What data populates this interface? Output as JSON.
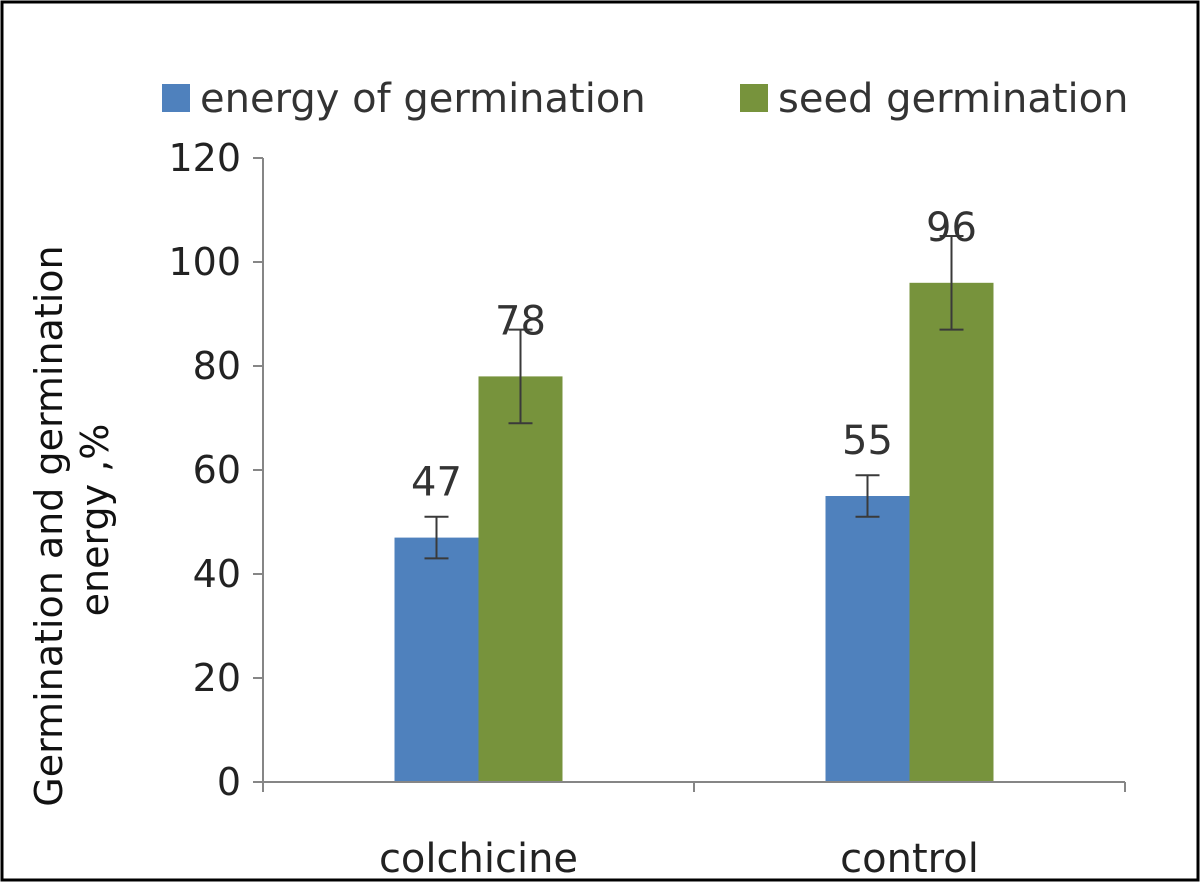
{
  "chart_data": {
    "type": "bar",
    "categories": [
      "colchicine",
      "control"
    ],
    "series": [
      {
        "name": "energy of germination",
        "color": "#4f81bd",
        "values": [
          47,
          55
        ],
        "error": [
          4,
          4
        ],
        "labels": [
          "47",
          "55"
        ]
      },
      {
        "name": "seed germination",
        "color": "#77933c",
        "values": [
          78,
          96
        ],
        "error": [
          9,
          9
        ],
        "labels": [
          "78",
          "96"
        ]
      }
    ],
    "title": "",
    "xlabel": "",
    "ylabel": "Germination and germination energy ,%",
    "ylabel_lines": [
      "Germination and germination",
      "energy ,%"
    ],
    "ylim": [
      0,
      120
    ],
    "yticks": [
      0,
      20,
      40,
      60,
      80,
      100,
      120
    ],
    "ytick_labels": [
      "0",
      "20",
      "40",
      "60",
      "80",
      "100",
      "120"
    ],
    "grid": false,
    "legend_position": "top"
  }
}
